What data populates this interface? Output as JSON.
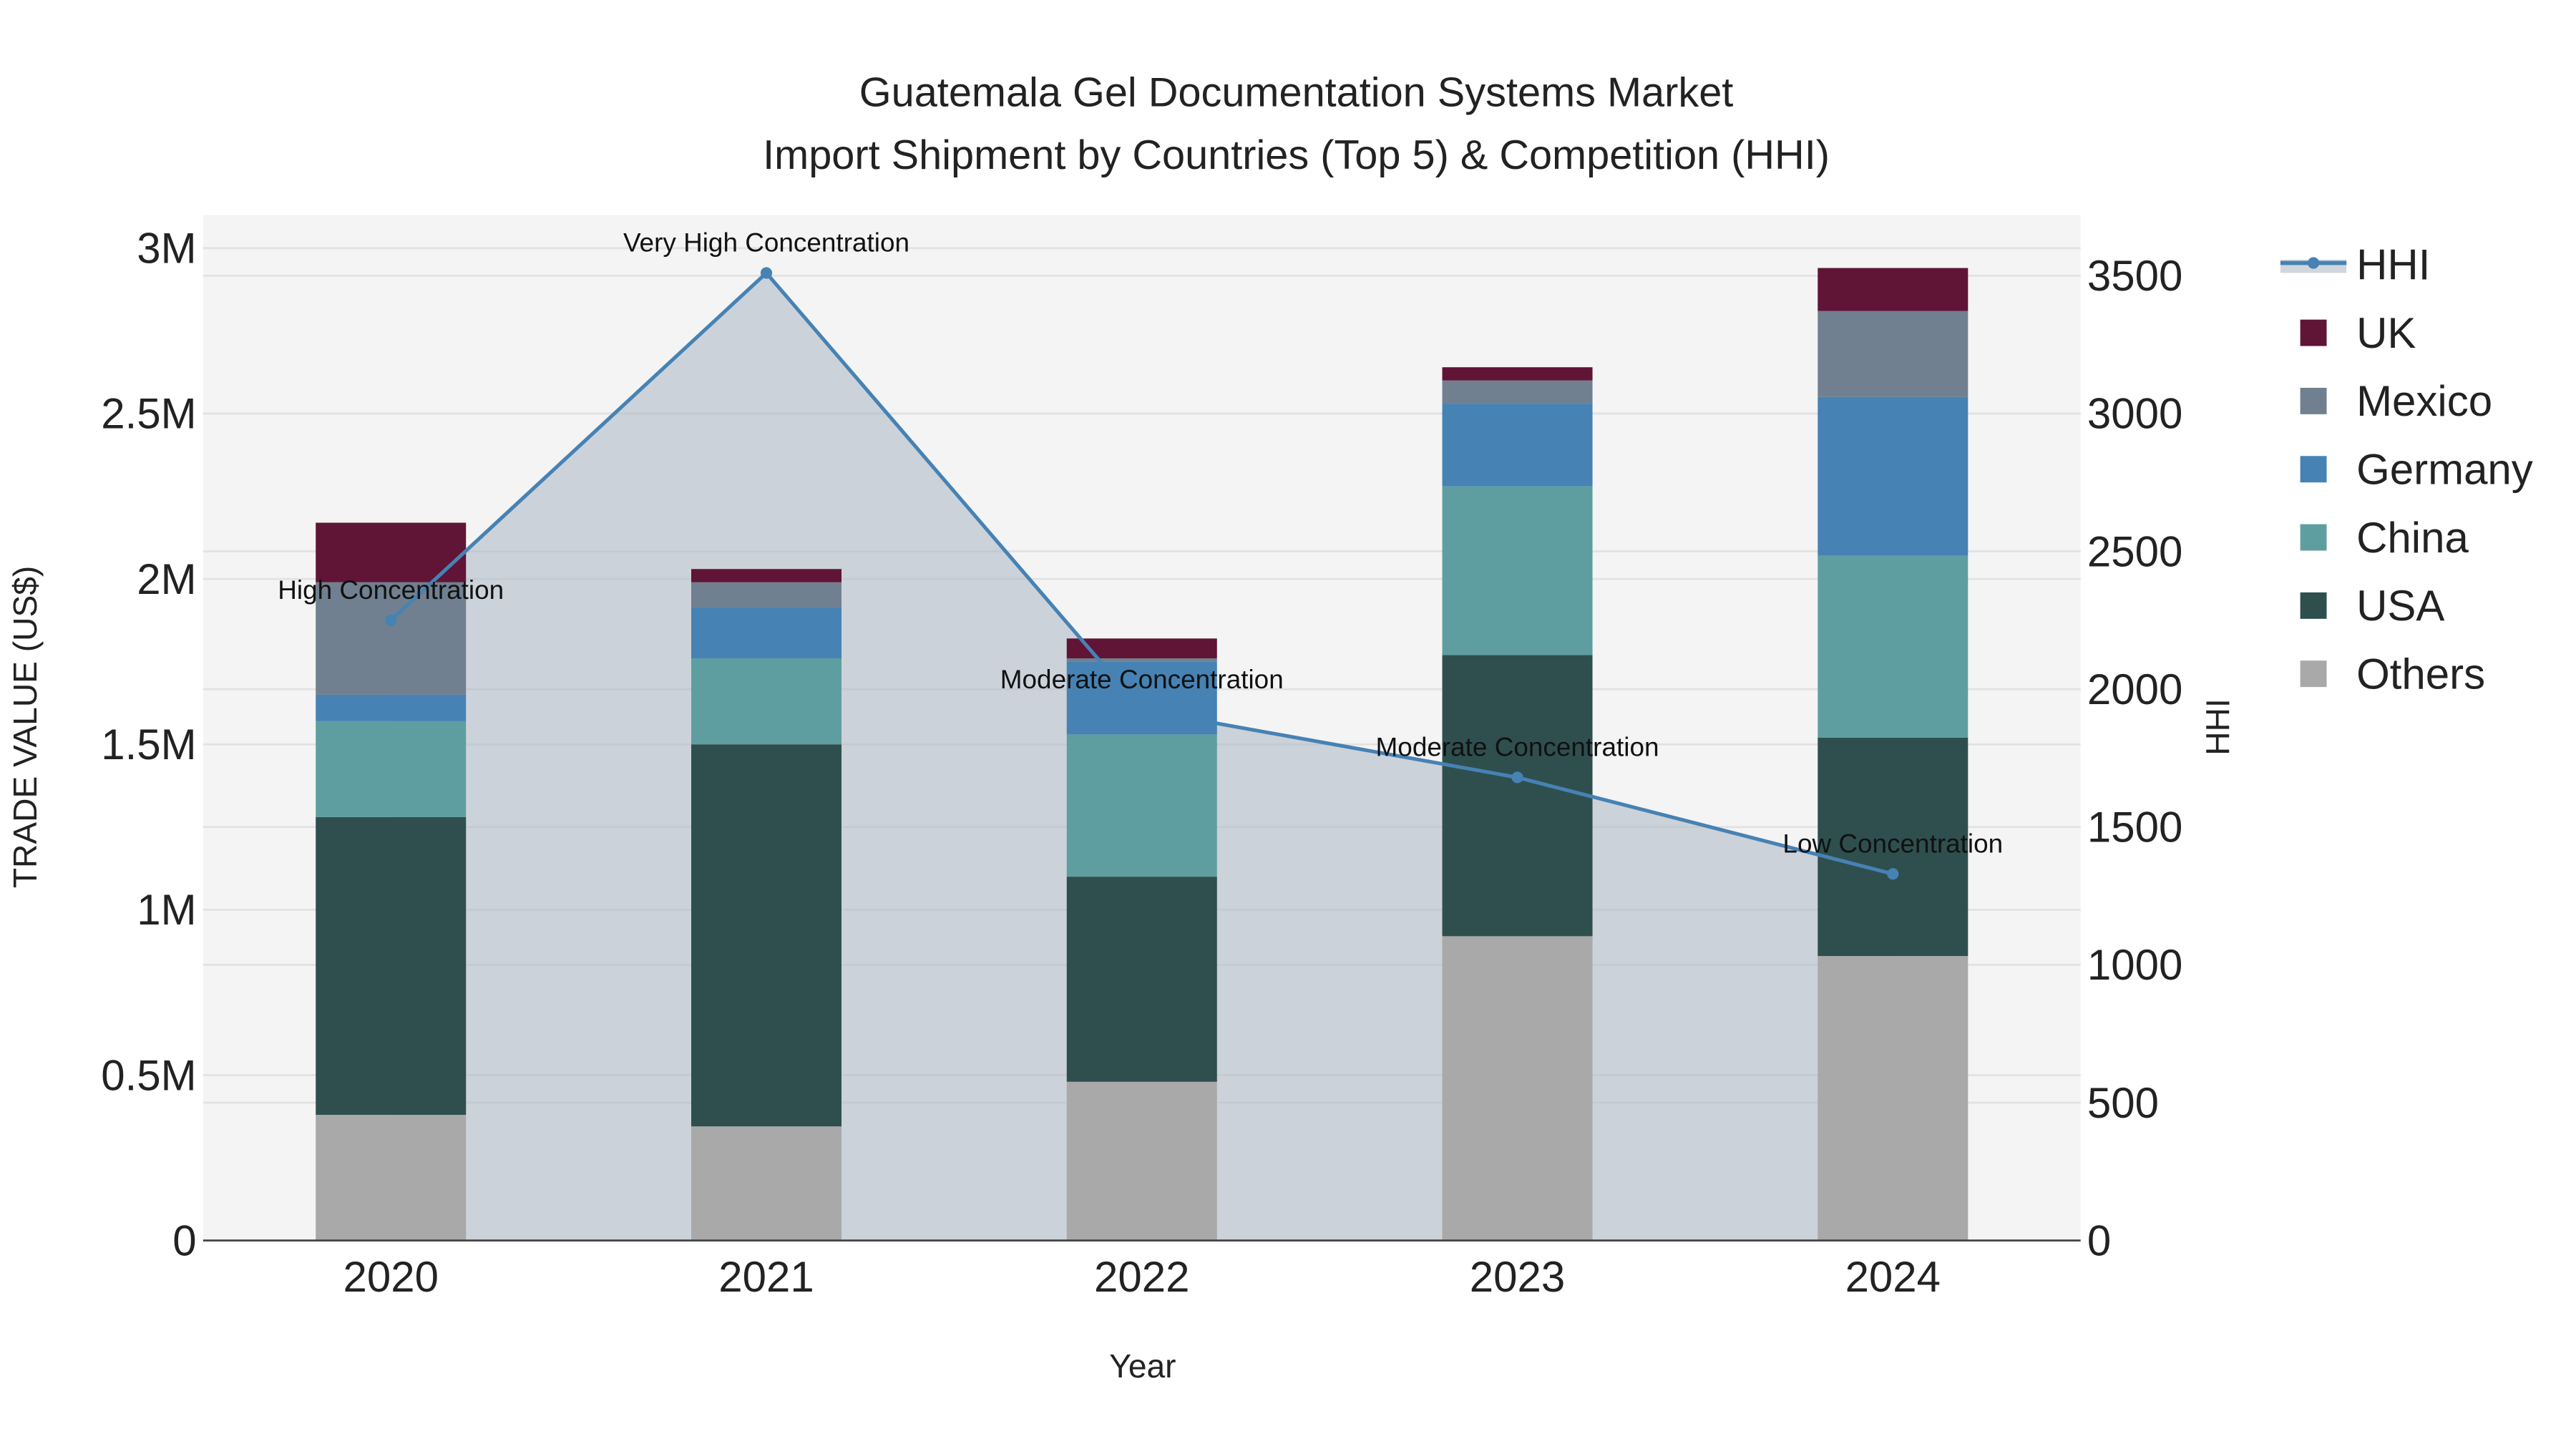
{
  "chart_data": {
    "type": "bar",
    "title_line1": "Guatemala Gel Documentation Systems Market",
    "title_line2": "Import Shipment by Countries (Top 5) & Competition (HHI)",
    "xlabel": "Year",
    "ylabel": "TRADE VALUE (US$)",
    "y2label": "HHI",
    "categories": [
      "2020",
      "2021",
      "2022",
      "2023",
      "2024"
    ],
    "ylim": [
      0,
      3100000
    ],
    "y2lim": [
      0,
      3720
    ],
    "yticks": [
      {
        "v": 0,
        "label": "0"
      },
      {
        "v": 500000,
        "label": "0.5M"
      },
      {
        "v": 1000000,
        "label": "1M"
      },
      {
        "v": 1500000,
        "label": "1.5M"
      },
      {
        "v": 2000000,
        "label": "2M"
      },
      {
        "v": 2500000,
        "label": "2.5M"
      },
      {
        "v": 3000000,
        "label": "3M"
      }
    ],
    "y2ticks": [
      {
        "v": 0,
        "label": "0"
      },
      {
        "v": 500,
        "label": "500"
      },
      {
        "v": 1000,
        "label": "1000"
      },
      {
        "v": 1500,
        "label": "1500"
      },
      {
        "v": 2000,
        "label": "2000"
      },
      {
        "v": 2500,
        "label": "2500"
      },
      {
        "v": 3000,
        "label": "3000"
      },
      {
        "v": 3500,
        "label": "3500"
      }
    ],
    "series": [
      {
        "name": "Others",
        "color": "#A9A9A9",
        "values": [
          380000,
          345000,
          480000,
          920000,
          860000
        ]
      },
      {
        "name": "USA",
        "color": "#2F4F4F",
        "values": [
          900000,
          1155000,
          620000,
          850000,
          660000
        ]
      },
      {
        "name": "China",
        "color": "#5F9EA0",
        "values": [
          290000,
          260000,
          430000,
          510000,
          550000
        ]
      },
      {
        "name": "Germany",
        "color": "#4682B4",
        "values": [
          80000,
          155000,
          220000,
          250000,
          480000
        ]
      },
      {
        "name": "Mexico",
        "color": "#708090",
        "values": [
          340000,
          75000,
          10000,
          70000,
          260000
        ]
      },
      {
        "name": "UK",
        "color": "#601436",
        "values": [
          180000,
          40000,
          60000,
          40000,
          130000
        ]
      }
    ],
    "hhi": {
      "name": "HHI",
      "color": "#4682B4",
      "values": [
        2250,
        3510,
        1925,
        1680,
        1330
      ],
      "annotations": [
        "High Concentration",
        "Very High Concentration",
        "Moderate Concentration",
        "Moderate Concentration",
        "Low Concentration"
      ]
    },
    "legend": [
      "HHI",
      "UK",
      "Mexico",
      "Germany",
      "China",
      "USA",
      "Others"
    ],
    "legend_position": "right",
    "grid": true
  }
}
